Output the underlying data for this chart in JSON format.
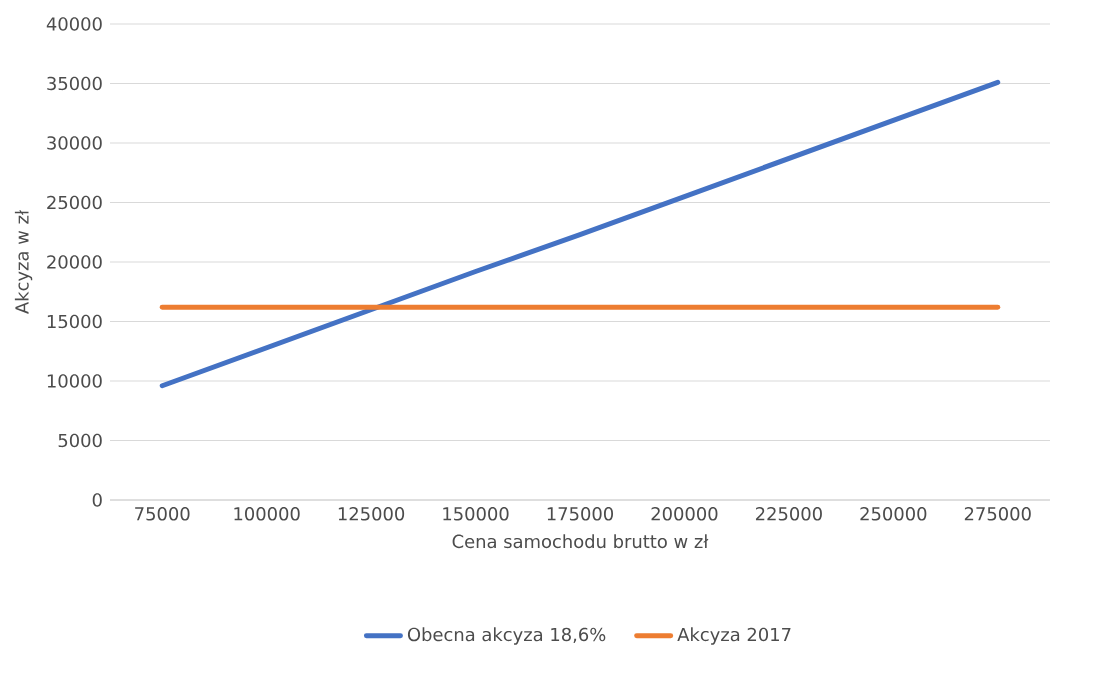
{
  "chart_data": {
    "type": "line",
    "xlabel": "Cena samochodu brutto w zł",
    "ylabel": "Akcyza w zł",
    "categories": [
      "75000",
      "100000",
      "125000",
      "150000",
      "175000",
      "200000",
      "225000",
      "250000",
      "275000"
    ],
    "series": [
      {
        "name": "Obecna akcyza 18,6%",
        "color": "#4472c4",
        "values": [
          9600,
          12800,
          16000,
          19200,
          22300,
          25500,
          28700,
          31900,
          35100
        ]
      },
      {
        "name": "Akcyza 2017",
        "color": "#ed7d31",
        "values": [
          16200,
          16200,
          16200,
          16200,
          16200,
          16200,
          16200,
          16200,
          16200
        ]
      }
    ],
    "ylim": [
      0,
      40000
    ],
    "yticks": [
      0,
      5000,
      10000,
      15000,
      20000,
      25000,
      30000,
      35000,
      40000
    ],
    "grid": "y",
    "legend": "bottom",
    "marker": "none",
    "line_style": "solid"
  }
}
